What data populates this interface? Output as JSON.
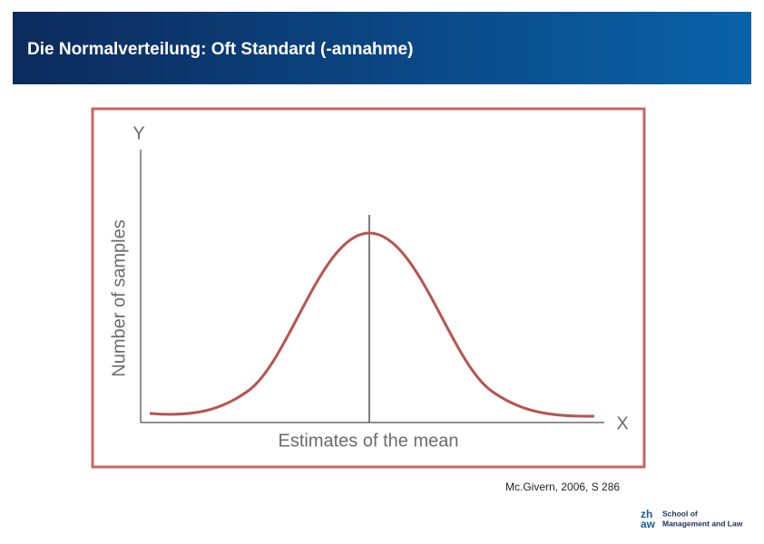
{
  "header": {
    "title": "Die Normalverteilung: Oft Standard (-annahme)"
  },
  "figure": {
    "y_letter": "Y",
    "y_label": "Number of samples",
    "x_letter": "X",
    "x_label": "Estimates of the mean"
  },
  "citation": "Mc.Givern, 2006, S 286",
  "logo": {
    "mark_top": "zh",
    "mark_bottom": "aw",
    "line1": "School of",
    "line2": "Management and Law"
  }
}
